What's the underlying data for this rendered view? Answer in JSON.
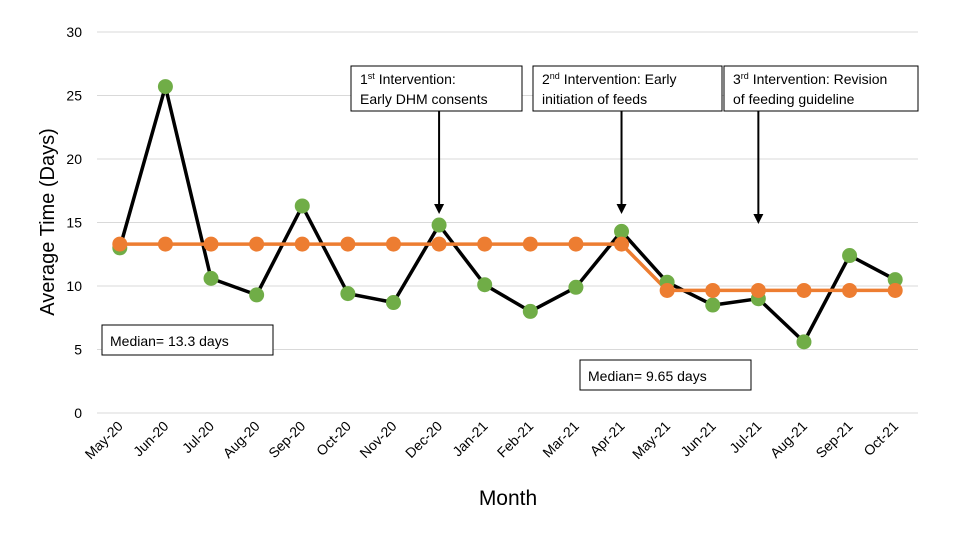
{
  "chart_data": {
    "type": "line",
    "xlabel": "Month",
    "ylabel": "Average Time (Days)",
    "ylim": [
      0,
      30
    ],
    "yticks": [
      0,
      5,
      10,
      15,
      20,
      25,
      30
    ],
    "grid": true,
    "categories": [
      "May-20",
      "Jun-20",
      "Jul-20",
      "Aug-20",
      "Sep-20",
      "Oct-20",
      "Nov-20",
      "Dec-20",
      "Jan-21",
      "Feb-21",
      "Mar-21",
      "Apr-21",
      "May-21",
      "Jun-21",
      "Jul-21",
      "Aug-21",
      "Sep-21",
      "Oct-21"
    ],
    "series": [
      {
        "line_color": "#000000",
        "marker_color": "#70ad47",
        "values": [
          13.0,
          25.7,
          10.6,
          9.3,
          16.3,
          9.4,
          8.7,
          14.8,
          10.1,
          8.0,
          9.9,
          14.3,
          10.3,
          8.5,
          9.0,
          5.6,
          12.4,
          10.5
        ]
      },
      {
        "line_color": "#ed7d31",
        "marker_color": "#ed7d31",
        "values": [
          13.3,
          13.3,
          13.3,
          13.3,
          13.3,
          13.3,
          13.3,
          13.3,
          13.3,
          13.3,
          13.3,
          13.3,
          9.65,
          9.65,
          9.65,
          9.65,
          9.65,
          9.65
        ]
      }
    ],
    "annotations": [
      {
        "sup_num": "1",
        "sup": "st",
        "line1_rest": " Intervention:",
        "line2": "Early DHM consents",
        "arrow_at": "Dec-20"
      },
      {
        "sup_num": "2",
        "sup": "nd",
        "line1_rest": " Intervention: Early",
        "line2": "initiation of feeds",
        "arrow_at": "Apr-21"
      },
      {
        "sup_num": "3",
        "sup": "rd",
        "line1_rest": " Intervention: Revision",
        "line2": "of feeding guideline",
        "arrow_at": "Jul-21"
      }
    ],
    "median_labels": [
      {
        "text": "Median= 13.3 days"
      },
      {
        "text": "Median= 9.65 days"
      }
    ]
  }
}
